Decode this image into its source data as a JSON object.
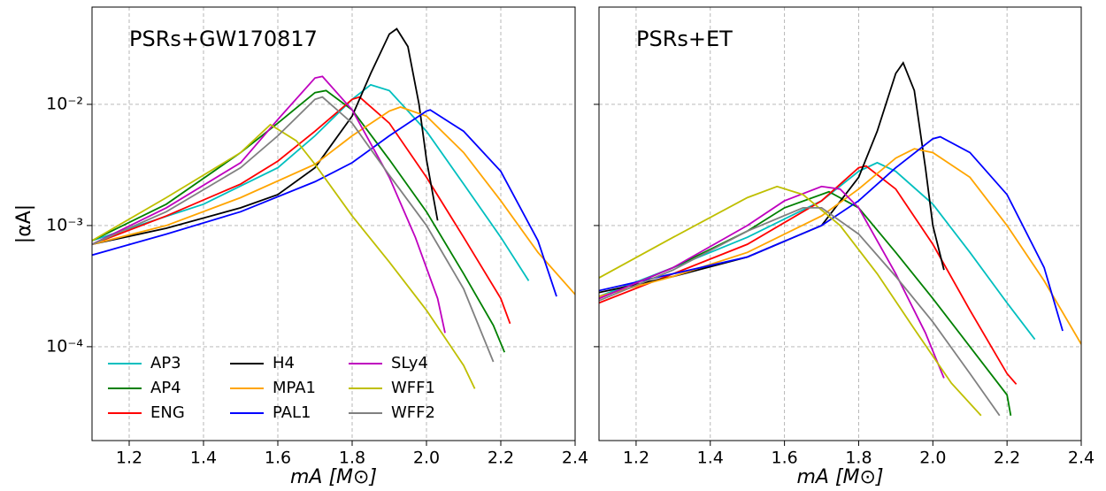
{
  "chart_data": [
    {
      "type": "line",
      "ylabel": "|αA|",
      "xlabel": "mA [M⊙]",
      "annotation": "PSRs+GW170817",
      "annotation_color": "#ff0000",
      "log_y": true,
      "grid": true,
      "legend": "lower left",
      "xlim": [
        1.1,
        2.4
      ],
      "xticks": [
        1.2,
        1.4,
        1.6,
        1.8,
        {
          "value": 2.0,
          "label": "2.0"
        },
        2.2,
        2.4
      ],
      "ylim": [
        1.68e-05,
        0.0635
      ],
      "yticks": [
        {
          "value": 0.01,
          "label": "10⁻²"
        },
        {
          "value": 0.001,
          "label": "10⁻³"
        },
        {
          "value": 0.0001,
          "label": "10⁻⁴"
        }
      ],
      "series": [
        {
          "name": "AP3",
          "color": "#00bfbf",
          "x": [
            1.1,
            1.4,
            1.6,
            1.7,
            1.8,
            1.85,
            1.9,
            2.0,
            2.1,
            2.2,
            2.275
          ],
          "values": [
            0.00075,
            0.0015,
            0.003,
            0.0055,
            0.011,
            0.0145,
            0.013,
            0.006,
            0.0022,
            0.0008,
            0.00035
          ]
        },
        {
          "name": "AP4",
          "color": "#008000",
          "x": [
            1.1,
            1.3,
            1.5,
            1.6,
            1.7,
            1.73,
            1.8,
            1.9,
            2.0,
            2.1,
            2.18,
            2.21
          ],
          "values": [
            0.00075,
            0.0015,
            0.004,
            0.007,
            0.0125,
            0.013,
            0.009,
            0.0035,
            0.0013,
            0.0004,
            0.00015,
            9e-05
          ]
        },
        {
          "name": "ENG",
          "color": "#ff0000",
          "x": [
            1.1,
            1.3,
            1.5,
            1.6,
            1.7,
            1.8,
            1.82,
            1.9,
            2.0,
            2.1,
            2.2,
            2.225
          ],
          "values": [
            0.0007,
            0.0012,
            0.0022,
            0.0034,
            0.006,
            0.011,
            0.0115,
            0.007,
            0.0025,
            0.0008,
            0.00025,
            0.000155
          ]
        },
        {
          "name": "H4",
          "color": "#000000",
          "x": [
            1.1,
            1.3,
            1.5,
            1.6,
            1.7,
            1.8,
            1.85,
            1.9,
            1.92,
            1.95,
            1.98,
            2.0,
            2.03
          ],
          "values": [
            0.0007,
            0.00095,
            0.0014,
            0.0018,
            0.003,
            0.008,
            0.018,
            0.038,
            0.042,
            0.03,
            0.01,
            0.0035,
            0.0011
          ]
        },
        {
          "name": "MPA1",
          "color": "#ffa500",
          "x": [
            1.1,
            1.3,
            1.5,
            1.7,
            1.8,
            1.9,
            1.93,
            2.0,
            2.1,
            2.2,
            2.3,
            2.4
          ],
          "values": [
            0.0007,
            0.001,
            0.0017,
            0.0032,
            0.0055,
            0.0088,
            0.0095,
            0.008,
            0.004,
            0.0016,
            0.0006,
            0.00027
          ]
        },
        {
          "name": "PAL1",
          "color": "#0000ff",
          "x": [
            1.1,
            1.3,
            1.5,
            1.7,
            1.8,
            1.9,
            2.0,
            2.01,
            2.1,
            2.2,
            2.3,
            2.35
          ],
          "values": [
            0.00057,
            0.00085,
            0.0013,
            0.0023,
            0.0033,
            0.0055,
            0.0088,
            0.009,
            0.006,
            0.0028,
            0.00075,
            0.00026
          ]
        },
        {
          "name": "SLy4",
          "color": "#bf00bf",
          "x": [
            1.1,
            1.3,
            1.5,
            1.6,
            1.7,
            1.72,
            1.8,
            1.9,
            1.97,
            2.03,
            2.05
          ],
          "values": [
            0.0007,
            0.0014,
            0.0033,
            0.0075,
            0.0165,
            0.017,
            0.009,
            0.0025,
            0.0008,
            0.00025,
            0.00013
          ]
        },
        {
          "name": "WFF1",
          "color": "#bfbf00",
          "x": [
            1.1,
            1.3,
            1.5,
            1.58,
            1.65,
            1.7,
            1.8,
            1.9,
            2.0,
            2.1,
            2.13
          ],
          "values": [
            0.00075,
            0.0017,
            0.004,
            0.0068,
            0.005,
            0.0032,
            0.0012,
            0.0005,
            0.0002,
            7e-05,
            4.5e-05
          ]
        },
        {
          "name": "WFF2",
          "color": "#808080",
          "x": [
            1.1,
            1.3,
            1.5,
            1.6,
            1.7,
            1.72,
            1.8,
            1.9,
            2.0,
            2.1,
            2.18
          ],
          "values": [
            0.0007,
            0.0013,
            0.003,
            0.0055,
            0.011,
            0.0115,
            0.007,
            0.0026,
            0.001,
            0.0003,
            7.5e-05
          ]
        }
      ]
    },
    {
      "type": "line",
      "xlabel": "mA [M⊙]",
      "annotation": "PSRs+ET",
      "annotation_color": "#ff0000",
      "log_y": true,
      "grid": true,
      "ytick_labels": false,
      "xlim": [
        1.1,
        2.4
      ],
      "xticks": [
        1.2,
        1.4,
        1.6,
        1.8,
        {
          "value": 2.0,
          "label": "2.0"
        },
        2.2,
        2.4
      ],
      "ylim": [
        1.68e-05,
        0.0635
      ],
      "yticks": [
        0.01,
        0.001,
        0.0001
      ],
      "series": [
        {
          "color": "#00bfbf",
          "x": [
            1.1,
            1.3,
            1.5,
            1.7,
            1.8,
            1.85,
            1.9,
            2.0,
            2.1,
            2.2,
            2.275
          ],
          "values": [
            0.00026,
            0.00045,
            0.0008,
            0.0016,
            0.0028,
            0.0033,
            0.0028,
            0.0015,
            0.0006,
            0.00023,
            0.000115
          ]
        },
        {
          "color": "#008000",
          "x": [
            1.1,
            1.3,
            1.5,
            1.6,
            1.72,
            1.8,
            1.9,
            2.0,
            2.1,
            2.2,
            2.21
          ],
          "values": [
            0.00025,
            0.00045,
            0.0009,
            0.0014,
            0.0019,
            0.0014,
            0.0006,
            0.00025,
            0.0001,
            4e-05,
            2.7e-05
          ]
        },
        {
          "color": "#ff0000",
          "x": [
            1.1,
            1.3,
            1.5,
            1.7,
            1.8,
            1.82,
            1.9,
            2.0,
            2.1,
            2.2,
            2.225
          ],
          "values": [
            0.00023,
            0.0004,
            0.0007,
            0.0016,
            0.003,
            0.0031,
            0.002,
            0.0007,
            0.0002,
            6e-05,
            4.9e-05
          ]
        },
        {
          "color": "#000000",
          "x": [
            1.1,
            1.3,
            1.5,
            1.7,
            1.8,
            1.85,
            1.9,
            1.92,
            1.95,
            1.98,
            2.0,
            2.03
          ],
          "values": [
            0.00028,
            0.00038,
            0.00055,
            0.001,
            0.0025,
            0.006,
            0.018,
            0.022,
            0.013,
            0.003,
            0.001,
            0.00043
          ]
        },
        {
          "color": "#ffa500",
          "x": [
            1.1,
            1.3,
            1.5,
            1.7,
            1.8,
            1.9,
            1.95,
            2.0,
            2.1,
            2.2,
            2.3,
            2.4
          ],
          "values": [
            0.00026,
            0.00038,
            0.0006,
            0.0012,
            0.002,
            0.0036,
            0.0043,
            0.004,
            0.0025,
            0.001,
            0.00035,
            0.000105
          ]
        },
        {
          "color": "#0000ff",
          "x": [
            1.1,
            1.3,
            1.5,
            1.7,
            1.8,
            1.9,
            2.0,
            2.02,
            2.1,
            2.2,
            2.3,
            2.35
          ],
          "values": [
            0.00029,
            0.0004,
            0.00055,
            0.001,
            0.0016,
            0.003,
            0.0052,
            0.0054,
            0.004,
            0.0018,
            0.00045,
            0.000135
          ]
        },
        {
          "color": "#bf00bf",
          "x": [
            1.1,
            1.3,
            1.5,
            1.6,
            1.7,
            1.75,
            1.8,
            1.9,
            1.98,
            2.03
          ],
          "values": [
            0.00025,
            0.00045,
            0.001,
            0.0016,
            0.0021,
            0.002,
            0.0014,
            0.0004,
            0.00013,
            5.5e-05
          ]
        },
        {
          "color": "#bfbf00",
          "x": [
            1.1,
            1.3,
            1.5,
            1.58,
            1.65,
            1.75,
            1.85,
            1.95,
            2.05,
            2.13
          ],
          "values": [
            0.00037,
            0.0008,
            0.0017,
            0.0021,
            0.0018,
            0.001,
            0.0004,
            0.00014,
            5e-05,
            2.7e-05
          ]
        },
        {
          "color": "#808080",
          "x": [
            1.1,
            1.3,
            1.5,
            1.65,
            1.7,
            1.8,
            1.9,
            2.0,
            2.1,
            2.18
          ],
          "values": [
            0.00024,
            0.00043,
            0.0009,
            0.0014,
            0.0014,
            0.00085,
            0.00038,
            0.00016,
            6e-05,
            2.7e-05
          ]
        }
      ]
    }
  ]
}
